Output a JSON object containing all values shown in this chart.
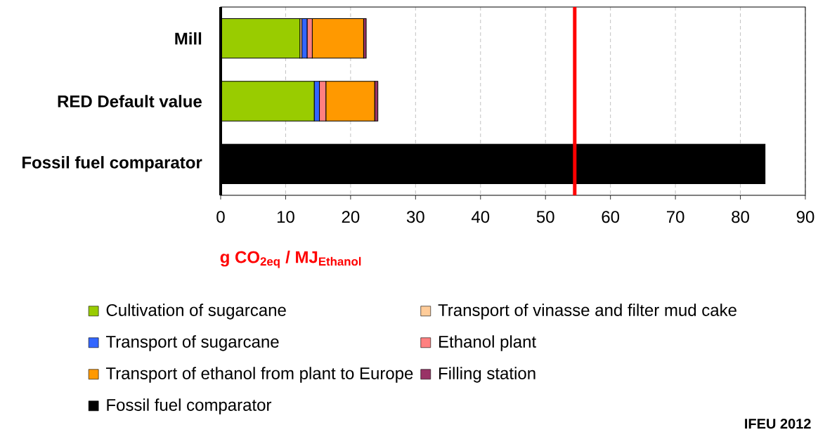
{
  "chart_data": {
    "type": "bar",
    "orientation": "horizontal",
    "stacked": true,
    "categories": [
      "Mill",
      "RED Default value",
      "Fossil fuel comparator"
    ],
    "series": [
      {
        "name": "Cultivation of sugarcane",
        "color": "#99cc00",
        "values": [
          12.2,
          14.4,
          null
        ]
      },
      {
        "name": "Transport of vinasse and filter mud cake",
        "color": "#ffcc99",
        "values": [
          0.3,
          0,
          null
        ]
      },
      {
        "name": "Transport of sugarcane",
        "color": "#3366ff",
        "values": [
          0.8,
          0.8,
          null
        ]
      },
      {
        "name": "Ethanol plant",
        "color": "#ff8080",
        "values": [
          0.8,
          1.0,
          null
        ]
      },
      {
        "name": "Transport of ethanol from plant to Europe",
        "color": "#ff9900",
        "values": [
          7.9,
          7.5,
          null
        ]
      },
      {
        "name": "Filling station",
        "color": "#993366",
        "values": [
          0.4,
          0.5,
          null
        ]
      },
      {
        "name": "Fossil fuel comparator",
        "color": "#000000",
        "values": [
          null,
          null,
          83.8
        ]
      }
    ],
    "xlabel": "g CO$_{2eq}$ / MJ$_{Ethanol}$",
    "xlim": [
      0,
      90
    ],
    "xticks": [
      0,
      10,
      20,
      30,
      40,
      50,
      60,
      70,
      80,
      90
    ],
    "grid": "x",
    "legend": "bottom",
    "ref_lines": [
      {
        "axis": "x",
        "value": 54.5,
        "color": "#ff0000"
      }
    ],
    "annotations": [
      "IFEU 2012"
    ]
  }
}
